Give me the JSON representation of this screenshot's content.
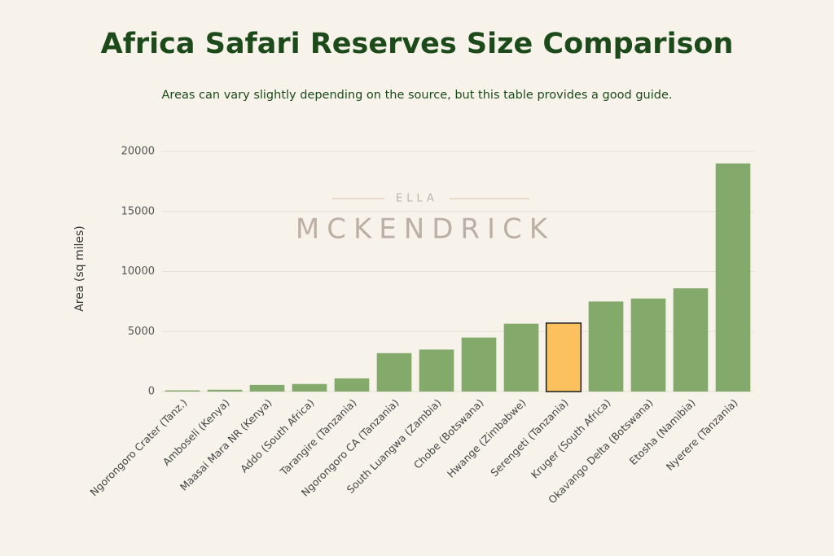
{
  "chart_data": {
    "type": "bar",
    "title": "Africa Safari Reserves Size Comparison",
    "subtitle": "Areas can vary slightly depending on the source, but this table provides a good guide.",
    "watermark": {
      "top": "ELLA",
      "bottom": "MCKENDRICK"
    },
    "y_label": "Area (sq miles)",
    "categories": [
      "Ngorongoro Crater (Tanz.)",
      "Amboseli (Kenya)",
      "Maasai Mara NR (Kenya)",
      "Addo (South Africa)",
      "Tarangire (Tanzania)",
      "Ngorongoro CA (Tanzania)",
      "South Luangwa (Zambia)",
      "Chobe (Botswana)",
      "Hwange (Zimbabwe)",
      "Serengeti (Tanzania)",
      "Kruger (South Africa)",
      "Okavango Delta (Botswana)",
      "Etosha (Namibia)",
      "Nyerere (Tanzania)"
    ],
    "values": [
      100,
      150,
      550,
      630,
      1100,
      3200,
      3500,
      4500,
      5650,
      5700,
      7500,
      7750,
      8600,
      19000
    ],
    "colors": [
      "#84aa6b",
      "#84aa6b",
      "#84aa6b",
      "#84aa6b",
      "#84aa6b",
      "#84aa6b",
      "#84aa6b",
      "#84aa6b",
      "#84aa6b",
      "#fbc15e",
      "#84aa6b",
      "#84aa6b",
      "#84aa6b",
      "#84aa6b"
    ],
    "edgecolors": [
      "none",
      "none",
      "none",
      "none",
      "none",
      "none",
      "none",
      "none",
      "none",
      "#1a1a1a",
      "none",
      "none",
      "none",
      "none"
    ],
    "ylim": [
      0,
      20000
    ],
    "yticks": [
      0,
      5000,
      10000,
      15000,
      20000
    ],
    "grid": true
  }
}
